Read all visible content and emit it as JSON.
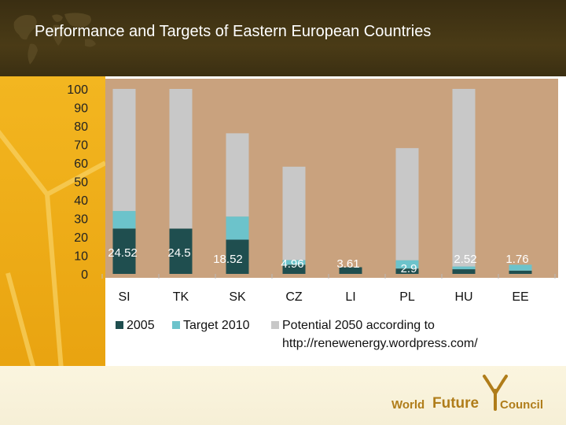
{
  "slide": {
    "title": "Performance and Targets of Eastern European Countries"
  },
  "colors": {
    "plot_bg": "#c9a27e",
    "series_2005": "#1f4e4f",
    "series_target_2010": "#6cc3cb",
    "series_potential_2050": "#c8c8c8",
    "left_band": "#f0b21a",
    "header": "#3d3114",
    "logo_text": "#b07d1a"
  },
  "chart_data": {
    "type": "bar",
    "stacked": true,
    "categories": [
      "SI",
      "TK",
      "SK",
      "CZ",
      "LI",
      "PL",
      "HU",
      "EE"
    ],
    "series": [
      {
        "name": "2005",
        "values": [
          24.52,
          24.5,
          18.52,
          4.96,
          3.61,
          2.9,
          2.52,
          1.76
        ]
      },
      {
        "name": "Target 2010",
        "values": [
          9.5,
          0,
          12.5,
          2.5,
          0,
          4.5,
          1.5,
          3.2
        ]
      },
      {
        "name": "Potential 2050 according to http://renewenergy.wordpress.com/",
        "values": [
          66,
          75.5,
          45,
          50.5,
          0,
          60.6,
          96,
          0
        ]
      }
    ],
    "data_labels": [
      "24.52",
      "24.5",
      "18.52",
      "4.96",
      "3.61",
      "2.9",
      "2.52",
      "1.76"
    ],
    "yticks": [
      "0",
      "10",
      "20",
      "30",
      "40",
      "50",
      "60",
      "70",
      "80",
      "90",
      "100"
    ],
    "ylim": [
      0,
      100
    ],
    "legend_position": "bottom",
    "grid": false
  },
  "legend": {
    "item1": "2005",
    "item2": "Target 2010",
    "item3_line1": "Potential 2050 according to",
    "item3_line2": "http://renewenergy.wordpress.com/"
  },
  "logo": {
    "word1": "World",
    "word2": "Future",
    "word3": "Council"
  }
}
